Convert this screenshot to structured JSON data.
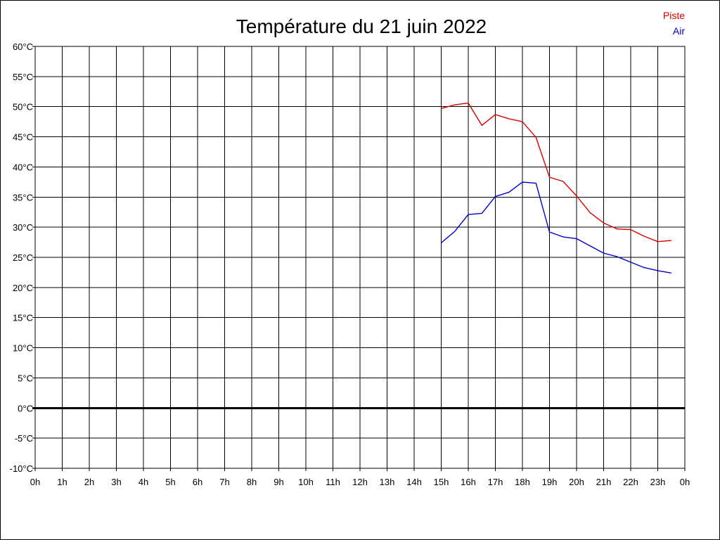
{
  "chart_data": {
    "type": "line",
    "title": "Température du 21 juin 2022",
    "xlabel": "",
    "ylabel": "",
    "x_tick_labels": [
      "0h",
      "1h",
      "2h",
      "3h",
      "4h",
      "5h",
      "6h",
      "7h",
      "8h",
      "9h",
      "10h",
      "11h",
      "12h",
      "13h",
      "14h",
      "15h",
      "16h",
      "17h",
      "18h",
      "19h",
      "20h",
      "21h",
      "22h",
      "23h",
      "0h"
    ],
    "y_tick_labels": [
      "60°C",
      "55°C",
      "50°C",
      "45°C",
      "40°C",
      "35°C",
      "30°C",
      "25°C",
      "20°C",
      "15°C",
      "10°C",
      "5°C",
      "0°C",
      "-5°C",
      "-10°C"
    ],
    "xlim": [
      0,
      24
    ],
    "ylim": [
      -10,
      60
    ],
    "grid": true,
    "legend_position": "top-right",
    "series": [
      {
        "name": "Piste",
        "color": "#dd0000",
        "x": [
          15,
          15.5,
          16,
          16.5,
          17,
          17.5,
          18,
          18.5,
          19,
          19.5,
          20,
          20.5,
          21,
          21.5,
          22,
          22.5,
          23,
          23.5
        ],
        "y": [
          49.7,
          50.3,
          50.6,
          46.9,
          48.7,
          48.0,
          47.5,
          44.9,
          38.3,
          37.6,
          35.2,
          32.4,
          30.7,
          29.7,
          29.6,
          28.5,
          27.6,
          27.8
        ]
      },
      {
        "name": "Air",
        "color": "#0000cc",
        "x": [
          15,
          15.5,
          16,
          16.5,
          17,
          17.5,
          18,
          18.5,
          19,
          19.5,
          20,
          20.5,
          21,
          21.5,
          22,
          22.5,
          23,
          23.5
        ],
        "y": [
          27.4,
          29.3,
          32.1,
          32.3,
          35.1,
          35.8,
          37.5,
          37.3,
          29.2,
          28.4,
          28.1,
          26.9,
          25.7,
          25.1,
          24.2,
          23.3,
          22.8,
          22.4
        ]
      }
    ]
  }
}
